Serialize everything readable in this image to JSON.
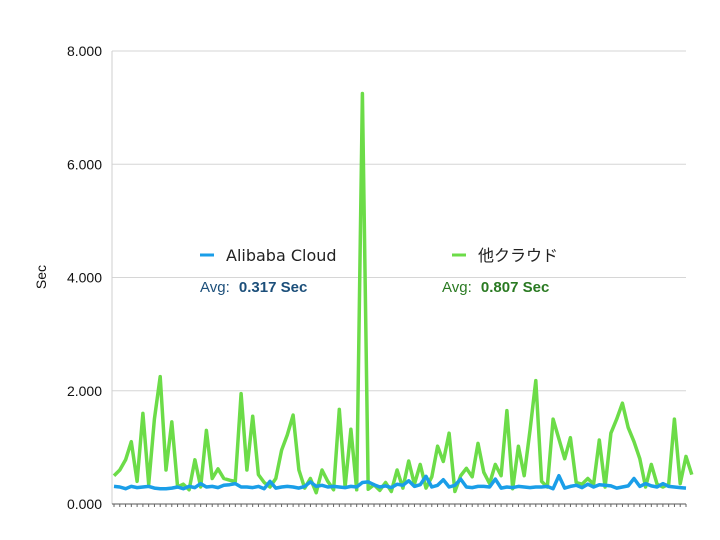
{
  "chart_data": {
    "type": "line",
    "ylabel": "Sec",
    "xlabel": "",
    "ylim": [
      0,
      8
    ],
    "yticks": [
      "0.000",
      "2.000",
      "4.000",
      "6.000",
      "8.000"
    ],
    "grid": "horizontal",
    "legend_position": "center",
    "series": [
      {
        "name": "Alibaba Cloud",
        "color": "#1a9ee8",
        "avg_label": "Avg:",
        "avg_value": "0.317 Sec",
        "avg_color": "#1c4f7a",
        "values": [
          0.31,
          0.3,
          0.27,
          0.31,
          0.29,
          0.3,
          0.31,
          0.28,
          0.27,
          0.27,
          0.28,
          0.3,
          0.27,
          0.31,
          0.29,
          0.36,
          0.3,
          0.31,
          0.29,
          0.33,
          0.34,
          0.36,
          0.3,
          0.3,
          0.29,
          0.31,
          0.27,
          0.4,
          0.28,
          0.3,
          0.31,
          0.3,
          0.28,
          0.31,
          0.39,
          0.31,
          0.33,
          0.3,
          0.31,
          0.3,
          0.29,
          0.31,
          0.3,
          0.38,
          0.39,
          0.34,
          0.3,
          0.32,
          0.29,
          0.35,
          0.33,
          0.41,
          0.31,
          0.34,
          0.49,
          0.3,
          0.33,
          0.43,
          0.3,
          0.33,
          0.44,
          0.3,
          0.29,
          0.31,
          0.31,
          0.3,
          0.44,
          0.28,
          0.3,
          0.29,
          0.31,
          0.3,
          0.29,
          0.3,
          0.3,
          0.31,
          0.27,
          0.5,
          0.28,
          0.31,
          0.33,
          0.29,
          0.35,
          0.3,
          0.34,
          0.33,
          0.32,
          0.28,
          0.3,
          0.32,
          0.45,
          0.31,
          0.36,
          0.32,
          0.3,
          0.36,
          0.31,
          0.3,
          0.29,
          0.28
        ]
      },
      {
        "name": "他クラウド",
        "color": "#6cdc48",
        "avg_label": "Avg:",
        "avg_value": "0.807 Sec",
        "avg_color": "#2a7a22",
        "values": [
          0.5,
          0.6,
          0.78,
          1.1,
          0.4,
          1.6,
          0.35,
          1.5,
          2.25,
          0.6,
          1.45,
          0.3,
          0.35,
          0.25,
          0.78,
          0.3,
          1.3,
          0.45,
          0.62,
          0.45,
          0.42,
          0.4,
          1.95,
          0.6,
          1.55,
          0.52,
          0.38,
          0.3,
          0.45,
          0.95,
          1.22,
          1.57,
          0.6,
          0.28,
          0.45,
          0.2,
          0.6,
          0.4,
          0.25,
          1.67,
          0.3,
          1.32,
          0.25,
          7.25,
          0.26,
          0.34,
          0.24,
          0.38,
          0.22,
          0.6,
          0.28,
          0.76,
          0.35,
          0.7,
          0.28,
          0.48,
          1.02,
          0.75,
          1.25,
          0.22,
          0.5,
          0.63,
          0.48,
          1.07,
          0.56,
          0.36,
          0.7,
          0.5,
          1.65,
          0.27,
          1.02,
          0.5,
          1.3,
          2.18,
          0.4,
          0.3,
          1.5,
          1.15,
          0.8,
          1.17,
          0.38,
          0.35,
          0.45,
          0.35,
          1.13,
          0.3,
          1.25,
          1.5,
          1.78,
          1.35,
          1.1,
          0.8,
          0.3,
          0.7,
          0.35,
          0.3,
          0.35,
          1.5,
          0.36,
          0.84,
          0.52
        ]
      }
    ]
  }
}
